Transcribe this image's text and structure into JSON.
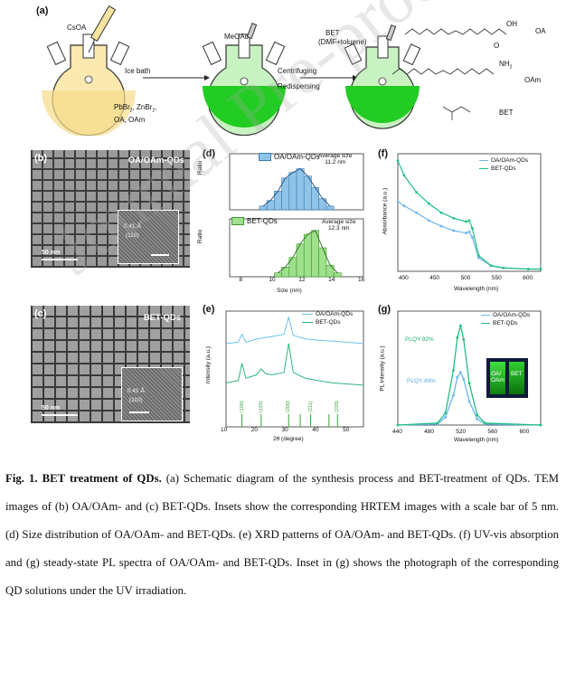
{
  "panel_a": {
    "letter": "(a)",
    "reagent_1": "CsOA",
    "precursors_line1": "PbBr",
    "precursors_line2": "ZnBr",
    "precursors_line3": "OA, OAm",
    "step_1": "Ice bath",
    "reagent_2": "MeOAc",
    "step_2a": "Centrifuging",
    "step_2b": "Redispersing",
    "reagent_3a": "BET",
    "reagent_3b": "(DMF+toluene)",
    "mol_oa": "OA",
    "mol_oam": "OAm",
    "mol_bet": "BET",
    "oh": "OH",
    "o": "O",
    "nh2": "NH"
  },
  "panel_b": {
    "letter": "(b)",
    "label": "OA/OAm-QDs",
    "scale": "50 nm",
    "inset_d": "0.41 Å",
    "inset_plane": "(110)"
  },
  "panel_c": {
    "letter": "(c)",
    "label": "BET-QDs",
    "scale": "50 nm",
    "inset_d": "0.41 Å",
    "inset_plane": "(110)"
  },
  "panel_d": {
    "letter": "(d)",
    "top_legend": "OA/OAm-QDs",
    "top_avg_label": "Average size",
    "top_avg_value": "11.2 nm",
    "bottom_legend": "BET-QDs",
    "bottom_avg_label": "Average size",
    "bottom_avg_value": "12.3 nm",
    "ylabel": "Ratio",
    "xlabel": "Size (nm)",
    "ticks": [
      "8",
      "10",
      "12",
      "14",
      "16"
    ]
  },
  "panel_e": {
    "letter": "(e)",
    "legend_1": "OA/OAm-QDs",
    "legend_2": "BET-QDs",
    "ylabel": "Intensity (a.u.)",
    "xlabel": "2θ (degree)",
    "ticks": [
      "10",
      "20",
      "30",
      "40",
      "50"
    ],
    "ref_labels": [
      "(100)",
      "(110)",
      "(200)",
      "(211)",
      "(220)"
    ]
  },
  "panel_f": {
    "letter": "(f)",
    "legend_1": "OA/OAm-QDs",
    "legend_2": "BET-QDs",
    "ylabel": "Absorbance (a.u.)",
    "xlabel": "Wavelength (nm)",
    "ticks": [
      "400",
      "450",
      "500",
      "550",
      "600"
    ]
  },
  "panel_g": {
    "letter": "(g)",
    "legend_1": "OA/OAm-QDs",
    "legend_2": "BET-QDs",
    "plqy_1": "PLQY:92%",
    "plqy_2": "PLQY:49%",
    "photo_1": "OA/\nOAm",
    "photo_2": "BET",
    "ylabel": "PL intensity (a.u.)",
    "xlabel": "Wavelength (nm)",
    "ticks": [
      "440",
      "480",
      "520",
      "560",
      "600"
    ]
  },
  "chart_data": [
    {
      "type": "bar",
      "panel": "d-top",
      "x": [
        9,
        9.5,
        10,
        10.5,
        11,
        11.5,
        12,
        12.5,
        13,
        13.5
      ],
      "values": [
        0.02,
        0.05,
        0.1,
        0.17,
        0.2,
        0.22,
        0.18,
        0.12,
        0.06,
        0.02
      ],
      "series_name": "OA/OAm-QDs",
      "xlabel": "Size (nm)",
      "ylabel": "Ratio",
      "xlim": [
        7,
        16
      ]
    },
    {
      "type": "bar",
      "panel": "d-bottom",
      "x": [
        10,
        10.5,
        11,
        11.5,
        12,
        12.5,
        13,
        13.5,
        14
      ],
      "values": [
        0.02,
        0.05,
        0.1,
        0.17,
        0.22,
        0.24,
        0.15,
        0.06,
        0.02
      ],
      "series_name": "BET-QDs",
      "xlabel": "Size (nm)",
      "ylabel": "Ratio",
      "xlim": [
        7,
        16
      ]
    },
    {
      "type": "line",
      "panel": "e",
      "xlabel": "2θ (degree)",
      "ylabel": "Intensity (a.u.)",
      "xlim": [
        10,
        55
      ],
      "series": [
        {
          "name": "OA/OAm-QDs",
          "x": [
            10,
            14,
            15.2,
            16.5,
            20,
            25,
            29,
            30.5,
            32,
            36,
            40,
            45,
            50,
            55
          ],
          "y": [
            0.72,
            0.73,
            0.8,
            0.73,
            0.76,
            0.78,
            0.8,
            0.95,
            0.79,
            0.76,
            0.75,
            0.74,
            0.73,
            0.72
          ]
        },
        {
          "name": "BET-QDs",
          "x": [
            10,
            14,
            15.2,
            16.5,
            20,
            21.5,
            23,
            25,
            29,
            30.5,
            32,
            36,
            40,
            45,
            50,
            55
          ],
          "y": [
            0.38,
            0.4,
            0.55,
            0.42,
            0.45,
            0.5,
            0.46,
            0.45,
            0.47,
            0.72,
            0.47,
            0.42,
            0.4,
            0.38,
            0.37,
            0.36
          ]
        }
      ],
      "reference_peaks": [
        15.2,
        21.5,
        30.5,
        34.3,
        37.7,
        43.7,
        46.5
      ]
    },
    {
      "type": "line",
      "panel": "f",
      "xlabel": "Wavelength (nm)",
      "ylabel": "Absorbance (a.u.)",
      "xlim": [
        390,
        620
      ],
      "series": [
        {
          "name": "OA/OAm-QDs",
          "x": [
            390,
            400,
            420,
            440,
            460,
            480,
            500,
            505,
            510,
            520,
            540,
            560,
            600,
            620
          ],
          "y": [
            0.62,
            0.58,
            0.52,
            0.45,
            0.4,
            0.36,
            0.34,
            0.35,
            0.3,
            0.12,
            0.05,
            0.03,
            0.02,
            0.02
          ]
        },
        {
          "name": "BET-QDs",
          "x": [
            390,
            400,
            420,
            440,
            460,
            480,
            500,
            505,
            510,
            520,
            540,
            560,
            600,
            620
          ],
          "y": [
            0.98,
            0.85,
            0.7,
            0.6,
            0.52,
            0.47,
            0.44,
            0.45,
            0.38,
            0.14,
            0.05,
            0.03,
            0.02,
            0.02
          ]
        }
      ]
    },
    {
      "type": "line",
      "panel": "g",
      "xlabel": "Wavelength (nm)",
      "ylabel": "PL intensity (a.u.)",
      "xlim": [
        440,
        620
      ],
      "series": [
        {
          "name": "OA/OAm-QDs",
          "x": [
            440,
            490,
            500,
            510,
            515,
            519,
            523,
            530,
            540,
            550,
            620
          ],
          "y": [
            0,
            0.01,
            0.08,
            0.3,
            0.48,
            0.53,
            0.46,
            0.24,
            0.06,
            0.01,
            0
          ]
        },
        {
          "name": "BET-QDs",
          "x": [
            440,
            490,
            500,
            510,
            515,
            519,
            523,
            530,
            540,
            550,
            620
          ],
          "y": [
            0,
            0.02,
            0.12,
            0.55,
            0.88,
            1.0,
            0.86,
            0.42,
            0.1,
            0.02,
            0
          ]
        }
      ]
    }
  ],
  "caption": {
    "lead": "Fig. 1. BET treatment of QDs.",
    "text": " (a) Schematic diagram of the synthesis process and BET-treatment of QDs. TEM images of (b) OA/OAm- and (c) BET-QDs. Insets show the corresponding HRTEM images with a scale bar of 5 nm. (d) Size distribution of OA/OAm- and BET-QDs. (e) XRD patterns of OA/OAm- and BET-QDs. (f) UV-vis absorption and (g) steady-state PL spectra of OA/OAm- and BET-QDs. Inset in (g) shows the photograph of the corresponding QD solutions under the UV irradiation."
  },
  "watermark": "Journal Pre-proofs"
}
